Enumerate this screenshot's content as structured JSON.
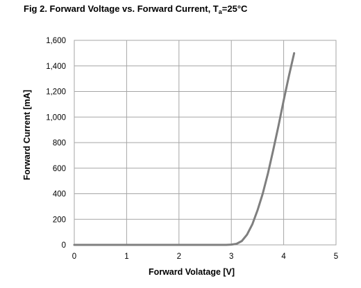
{
  "chart_data": {
    "type": "line",
    "title": "Fig 2. Forward Voltage vs. Forward Current, T",
    "title_subscript": "a",
    "title_suffix": "=25°C",
    "xlabel": "Forward  Volatage [V]",
    "ylabel": "Forward Current [mA]",
    "xlim": [
      0,
      5
    ],
    "ylim": [
      0,
      1600
    ],
    "xticks": [
      0,
      1,
      2,
      3,
      4,
      5
    ],
    "yticks": [
      0,
      200,
      400,
      600,
      800,
      1000,
      1200,
      1400,
      1600
    ],
    "xtick_labels": [
      "0",
      "1",
      "2",
      "3",
      "4",
      "5"
    ],
    "ytick_labels": [
      "0",
      "200",
      "400",
      "600",
      "800",
      "1,000",
      "1,200",
      "1,400",
      "1,600"
    ],
    "grid": true,
    "line_color": "#7f7f7f",
    "grid_color": "#a6a6a6",
    "series": [
      {
        "x": [
          0,
          1,
          2,
          2.9,
          3.0,
          3.1,
          3.2,
          3.3,
          3.4,
          3.5,
          3.6,
          3.7,
          3.8,
          3.9,
          4.0,
          4.1,
          4.2
        ],
        "y": [
          0,
          0,
          0,
          0,
          2,
          8,
          30,
          80,
          160,
          270,
          400,
          560,
          740,
          930,
          1130,
          1320,
          1500
        ]
      }
    ]
  }
}
